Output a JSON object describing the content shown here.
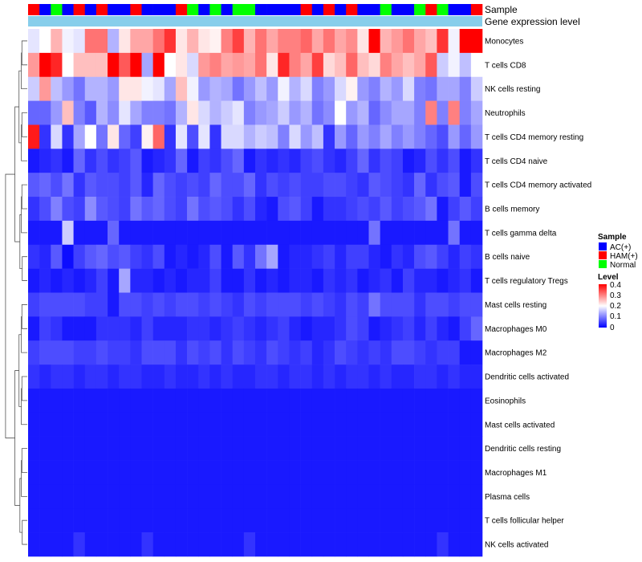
{
  "chart_data": {
    "type": "heatmap",
    "title": "",
    "annotation_tracks": [
      {
        "name": "Sample",
        "label": "Sample"
      },
      {
        "name": "Gene expression level",
        "label": "Gene expression level"
      }
    ],
    "sample_groups": [
      "HAM(+)",
      "AC(+)",
      "Normal",
      "AC(+)",
      "HAM(+)",
      "AC(+)",
      "HAM(+)",
      "AC(+)",
      "AC(+)",
      "HAM(+)",
      "AC(+)",
      "AC(+)",
      "AC(+)",
      "HAM(+)",
      "Normal",
      "AC(+)",
      "Normal",
      "AC(+)",
      "Normal",
      "Normal",
      "AC(+)",
      "AC(+)",
      "AC(+)",
      "AC(+)",
      "HAM(+)",
      "AC(+)",
      "HAM(+)",
      "AC(+)",
      "HAM(+)",
      "AC(+)",
      "AC(+)",
      "Normal",
      "AC(+)",
      "AC(+)",
      "Normal",
      "HAM(+)",
      "Normal",
      "AC(+)",
      "AC(+)",
      "HAM(+)"
    ],
    "gene_expression_level_color": "#87CEEB",
    "rows": [
      "Monocytes",
      "T cells CD8",
      "NK cells resting",
      "Neutrophils",
      "T cells CD4 memory resting",
      "T cells CD4 naive",
      "T cells CD4 memory activated",
      "B cells memory",
      "T cells gamma delta",
      "B cells naive",
      "T cells regulatory  Tregs",
      "Mast cells resting",
      "Macrophages M0",
      "Macrophages M2",
      "Dendritic cells activated",
      "Eosinophils",
      "Mast cells activated",
      "Dendritic cells resting",
      "Macrophages M1",
      "Plasma cells",
      "T cells follicular helper",
      "NK cells activated"
    ],
    "values": [
      [
        0.18,
        0.2,
        0.26,
        0.19,
        0.18,
        0.31,
        0.31,
        0.14,
        0.22,
        0.27,
        0.27,
        0.31,
        0.36,
        0.22,
        0.26,
        0.22,
        0.21,
        0.3,
        0.35,
        0.26,
        0.31,
        0.27,
        0.3,
        0.3,
        0.32,
        0.27,
        0.31,
        0.27,
        0.29,
        0.22,
        0.4,
        0.26,
        0.28,
        0.31,
        0.27,
        0.25,
        0.36,
        0.19,
        0.44,
        0.44
      ],
      [
        0.28,
        0.4,
        0.37,
        0.2,
        0.25,
        0.25,
        0.25,
        0.4,
        0.33,
        0.4,
        0.13,
        0.4,
        0.2,
        0.22,
        0.17,
        0.28,
        0.3,
        0.27,
        0.28,
        0.27,
        0.31,
        0.22,
        0.37,
        0.3,
        0.27,
        0.35,
        0.23,
        0.25,
        0.32,
        0.25,
        0.23,
        0.3,
        0.27,
        0.25,
        0.27,
        0.33,
        0.16,
        0.19,
        0.15,
        0.2
      ],
      [
        0.16,
        0.28,
        0.15,
        0.12,
        0.09,
        0.14,
        0.14,
        0.12,
        0.22,
        0.22,
        0.19,
        0.18,
        0.13,
        0.25,
        0.19,
        0.12,
        0.14,
        0.13,
        0.09,
        0.12,
        0.15,
        0.12,
        0.19,
        0.14,
        0.17,
        0.1,
        0.12,
        0.17,
        0.21,
        0.12,
        0.1,
        0.14,
        0.12,
        0.17,
        0.1,
        0.09,
        0.13,
        0.13,
        0.1,
        0.16
      ],
      [
        0.08,
        0.08,
        0.12,
        0.25,
        0.1,
        0.07,
        0.14,
        0.11,
        0.18,
        0.13,
        0.1,
        0.1,
        0.09,
        0.14,
        0.22,
        0.17,
        0.14,
        0.16,
        0.18,
        0.1,
        0.12,
        0.13,
        0.16,
        0.12,
        0.14,
        0.09,
        0.11,
        0.2,
        0.12,
        0.14,
        0.08,
        0.11,
        0.13,
        0.13,
        0.1,
        0.3,
        0.1,
        0.3,
        0.1,
        0.13
      ],
      [
        0.38,
        0.04,
        0.17,
        0.04,
        0.13,
        0.2,
        0.09,
        0.22,
        0.08,
        0.05,
        0.21,
        0.32,
        0.04,
        0.18,
        0.06,
        0.18,
        0.04,
        0.17,
        0.17,
        0.14,
        0.16,
        0.15,
        0.1,
        0.17,
        0.12,
        0.15,
        0.04,
        0.12,
        0.08,
        0.12,
        0.1,
        0.13,
        0.1,
        0.12,
        0.1,
        0.08,
        0.06,
        0.12,
        0.08,
        0.12
      ],
      [
        0.02,
        0.03,
        0.04,
        0.02,
        0.08,
        0.04,
        0.06,
        0.04,
        0.05,
        0.07,
        0.02,
        0.03,
        0.04,
        0.08,
        0.02,
        0.05,
        0.04,
        0.06,
        0.08,
        0.02,
        0.04,
        0.03,
        0.04,
        0.03,
        0.05,
        0.06,
        0.04,
        0.03,
        0.05,
        0.08,
        0.04,
        0.06,
        0.05,
        0.02,
        0.03,
        0.06,
        0.04,
        0.06,
        0.02,
        0.04
      ],
      [
        0.07,
        0.08,
        0.06,
        0.09,
        0.04,
        0.07,
        0.06,
        0.06,
        0.05,
        0.07,
        0.03,
        0.08,
        0.06,
        0.05,
        0.06,
        0.05,
        0.08,
        0.06,
        0.06,
        0.08,
        0.04,
        0.06,
        0.05,
        0.06,
        0.05,
        0.05,
        0.06,
        0.06,
        0.05,
        0.04,
        0.07,
        0.06,
        0.05,
        0.04,
        0.08,
        0.04,
        0.06,
        0.07,
        0.02,
        0.06
      ],
      [
        0.04,
        0.06,
        0.1,
        0.06,
        0.05,
        0.11,
        0.07,
        0.06,
        0.05,
        0.09,
        0.07,
        0.08,
        0.06,
        0.05,
        0.09,
        0.06,
        0.07,
        0.06,
        0.04,
        0.06,
        0.03,
        0.02,
        0.06,
        0.07,
        0.05,
        0.02,
        0.04,
        0.04,
        0.05,
        0.06,
        0.05,
        0.07,
        0.05,
        0.06,
        0.07,
        0.09,
        0.02,
        0.05,
        0.07,
        0.05
      ],
      [
        0.02,
        0.02,
        0.02,
        0.16,
        0.02,
        0.02,
        0.02,
        0.08,
        0.02,
        0.02,
        0.02,
        0.02,
        0.02,
        0.02,
        0.02,
        0.02,
        0.02,
        0.02,
        0.02,
        0.02,
        0.02,
        0.02,
        0.02,
        0.02,
        0.02,
        0.02,
        0.02,
        0.02,
        0.02,
        0.02,
        0.09,
        0.02,
        0.02,
        0.02,
        0.02,
        0.02,
        0.02,
        0.09,
        0.02,
        0.02
      ],
      [
        0.04,
        0.03,
        0.07,
        0.01,
        0.05,
        0.07,
        0.08,
        0.06,
        0.07,
        0.05,
        0.04,
        0.06,
        0.02,
        0.03,
        0.02,
        0.03,
        0.06,
        0.02,
        0.07,
        0.04,
        0.09,
        0.13,
        0.02,
        0.03,
        0.03,
        0.04,
        0.05,
        0.03,
        0.05,
        0.05,
        0.03,
        0.02,
        0.04,
        0.03,
        0.06,
        0.07,
        0.05,
        0.03,
        0.05,
        0.04
      ],
      [
        0.02,
        0.03,
        0.02,
        0.03,
        0.02,
        0.03,
        0.05,
        0.02,
        0.13,
        0.03,
        0.03,
        0.02,
        0.03,
        0.02,
        0.03,
        0.03,
        0.05,
        0.02,
        0.02,
        0.04,
        0.02,
        0.03,
        0.02,
        0.03,
        0.03,
        0.02,
        0.04,
        0.03,
        0.04,
        0.02,
        0.03,
        0.04,
        0.02,
        0.05,
        0.03,
        0.03,
        0.02,
        0.03,
        0.04,
        0.02
      ],
      [
        0.05,
        0.06,
        0.06,
        0.06,
        0.06,
        0.05,
        0.05,
        0.02,
        0.06,
        0.06,
        0.05,
        0.06,
        0.05,
        0.06,
        0.06,
        0.05,
        0.06,
        0.05,
        0.04,
        0.06,
        0.05,
        0.06,
        0.06,
        0.06,
        0.05,
        0.06,
        0.05,
        0.04,
        0.06,
        0.05,
        0.09,
        0.06,
        0.06,
        0.06,
        0.04,
        0.06,
        0.06,
        0.05,
        0.06,
        0.06
      ],
      [
        0.02,
        0.05,
        0.04,
        0.02,
        0.02,
        0.02,
        0.04,
        0.04,
        0.04,
        0.03,
        0.05,
        0.03,
        0.03,
        0.03,
        0.04,
        0.04,
        0.03,
        0.04,
        0.05,
        0.04,
        0.03,
        0.04,
        0.05,
        0.03,
        0.02,
        0.03,
        0.03,
        0.04,
        0.06,
        0.05,
        0.02,
        0.03,
        0.04,
        0.05,
        0.03,
        0.05,
        0.03,
        0.02,
        0.05,
        0.08
      ],
      [
        0.05,
        0.06,
        0.06,
        0.06,
        0.05,
        0.05,
        0.06,
        0.05,
        0.05,
        0.04,
        0.06,
        0.06,
        0.06,
        0.04,
        0.06,
        0.05,
        0.06,
        0.04,
        0.06,
        0.05,
        0.04,
        0.06,
        0.05,
        0.04,
        0.05,
        0.03,
        0.04,
        0.06,
        0.05,
        0.04,
        0.05,
        0.04,
        0.06,
        0.06,
        0.05,
        0.04,
        0.05,
        0.05,
        0.02,
        0.02
      ],
      [
        0.04,
        0.03,
        0.04,
        0.04,
        0.03,
        0.04,
        0.04,
        0.03,
        0.04,
        0.04,
        0.03,
        0.03,
        0.04,
        0.03,
        0.03,
        0.04,
        0.03,
        0.04,
        0.03,
        0.03,
        0.04,
        0.04,
        0.03,
        0.04,
        0.04,
        0.03,
        0.04,
        0.03,
        0.04,
        0.04,
        0.03,
        0.04,
        0.03,
        0.03,
        0.04,
        0.04,
        0.03,
        0.04,
        0.03,
        0.03
      ],
      [
        0.02,
        0.02,
        0.02,
        0.02,
        0.02,
        0.02,
        0.02,
        0.02,
        0.02,
        0.02,
        0.02,
        0.02,
        0.02,
        0.02,
        0.02,
        0.02,
        0.02,
        0.02,
        0.02,
        0.02,
        0.02,
        0.02,
        0.02,
        0.02,
        0.02,
        0.02,
        0.02,
        0.02,
        0.02,
        0.02,
        0.02,
        0.02,
        0.02,
        0.02,
        0.02,
        0.02,
        0.02,
        0.02,
        0.02,
        0.02
      ],
      [
        0.02,
        0.02,
        0.02,
        0.02,
        0.02,
        0.02,
        0.02,
        0.02,
        0.02,
        0.02,
        0.02,
        0.02,
        0.02,
        0.02,
        0.02,
        0.02,
        0.02,
        0.02,
        0.02,
        0.02,
        0.02,
        0.02,
        0.02,
        0.02,
        0.02,
        0.02,
        0.02,
        0.02,
        0.02,
        0.02,
        0.02,
        0.02,
        0.02,
        0.02,
        0.02,
        0.02,
        0.02,
        0.02,
        0.02,
        0.02
      ],
      [
        0.02,
        0.02,
        0.02,
        0.02,
        0.02,
        0.02,
        0.02,
        0.02,
        0.02,
        0.02,
        0.02,
        0.02,
        0.02,
        0.02,
        0.02,
        0.02,
        0.02,
        0.02,
        0.02,
        0.02,
        0.02,
        0.02,
        0.02,
        0.02,
        0.02,
        0.02,
        0.02,
        0.02,
        0.02,
        0.02,
        0.02,
        0.02,
        0.02,
        0.02,
        0.02,
        0.02,
        0.02,
        0.02,
        0.02,
        0.02
      ],
      [
        0.02,
        0.02,
        0.02,
        0.02,
        0.02,
        0.02,
        0.02,
        0.02,
        0.02,
        0.02,
        0.02,
        0.02,
        0.02,
        0.02,
        0.02,
        0.02,
        0.02,
        0.02,
        0.02,
        0.02,
        0.02,
        0.02,
        0.02,
        0.02,
        0.02,
        0.02,
        0.02,
        0.02,
        0.02,
        0.02,
        0.02,
        0.02,
        0.02,
        0.02,
        0.02,
        0.02,
        0.02,
        0.02,
        0.02,
        0.02
      ],
      [
        0.02,
        0.02,
        0.02,
        0.02,
        0.02,
        0.02,
        0.02,
        0.02,
        0.02,
        0.02,
        0.02,
        0.02,
        0.02,
        0.02,
        0.02,
        0.02,
        0.02,
        0.02,
        0.02,
        0.02,
        0.02,
        0.02,
        0.02,
        0.02,
        0.02,
        0.02,
        0.02,
        0.02,
        0.02,
        0.02,
        0.02,
        0.02,
        0.02,
        0.02,
        0.02,
        0.02,
        0.02,
        0.02,
        0.02,
        0.02
      ],
      [
        0.02,
        0.02,
        0.02,
        0.02,
        0.02,
        0.02,
        0.02,
        0.02,
        0.02,
        0.02,
        0.02,
        0.02,
        0.02,
        0.02,
        0.02,
        0.02,
        0.02,
        0.02,
        0.02,
        0.02,
        0.02,
        0.02,
        0.02,
        0.02,
        0.02,
        0.02,
        0.02,
        0.02,
        0.02,
        0.02,
        0.02,
        0.02,
        0.02,
        0.02,
        0.02,
        0.02,
        0.02,
        0.02,
        0.02,
        0.02
      ],
      [
        0.02,
        0.02,
        0.02,
        0.02,
        0.04,
        0.02,
        0.02,
        0.02,
        0.02,
        0.02,
        0.04,
        0.02,
        0.02,
        0.02,
        0.02,
        0.02,
        0.02,
        0.02,
        0.02,
        0.04,
        0.02,
        0.02,
        0.02,
        0.02,
        0.02,
        0.02,
        0.02,
        0.02,
        0.02,
        0.02,
        0.02,
        0.02,
        0.02,
        0.02,
        0.02,
        0.02,
        0.04,
        0.02,
        0.02,
        0.02
      ]
    ],
    "legend_sample": {
      "title": "Sample",
      "entries": [
        {
          "label": "AC(+)",
          "color": "#0000FF"
        },
        {
          "label": "HAM(+)",
          "color": "#FF0000"
        },
        {
          "label": "Normal",
          "color": "#00FF00"
        }
      ]
    },
    "legend_level": {
      "title": "Level",
      "ticks": [
        "0.4",
        "0.3",
        "0.2",
        "0.1",
        "0"
      ],
      "range": [
        0,
        0.4
      ],
      "colors": {
        "low": "#0000FF",
        "mid": "#FFFFFF",
        "high": "#FF0000"
      }
    }
  }
}
